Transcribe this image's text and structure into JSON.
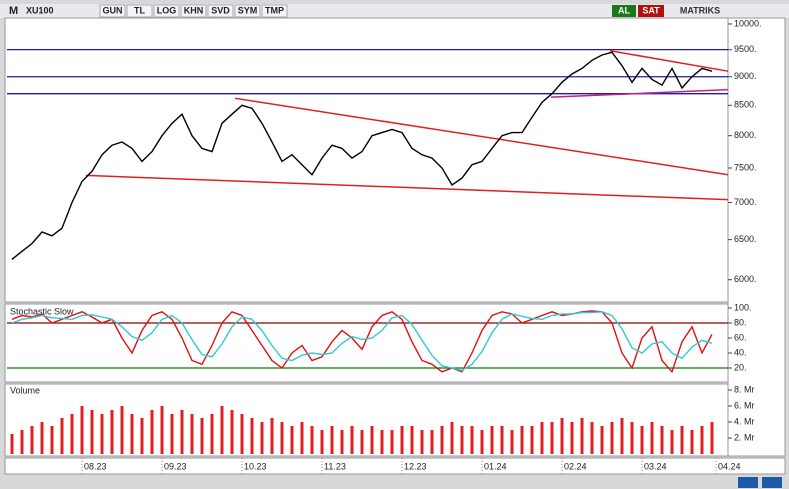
{
  "ui": {
    "menu": "M",
    "toolbar": [
      "GUN",
      "TL",
      "LOG",
      "KHN",
      "SVD",
      "SYM",
      "TMP"
    ],
    "buy": "AL",
    "sell": "SAT",
    "brand": "MATRIKS"
  },
  "chart_data": [
    {
      "type": "line",
      "title": "XU100",
      "log_scale": true,
      "xlim": [
        -0.5,
        71.6
      ],
      "ylim": [
        5750,
        10100
      ],
      "yticks": [
        {
          "value": 6000,
          "label": "6000."
        },
        {
          "value": 6500,
          "label": "6500."
        },
        {
          "value": 7000,
          "label": "7000."
        },
        {
          "value": 7500,
          "label": "7500."
        },
        {
          "value": 8000,
          "label": "8000."
        },
        {
          "value": 8500,
          "label": "8500."
        },
        {
          "value": 9000,
          "label": "9000."
        },
        {
          "value": 9500,
          "label": "9500."
        },
        {
          "value": 10000,
          "label": "10000."
        }
      ],
      "series": [
        {
          "color": "#000000",
          "values": [
            6250,
            6350,
            6450,
            6600,
            6550,
            6650,
            7000,
            7300,
            7450,
            7700,
            7850,
            7900,
            7800,
            7600,
            7750,
            8000,
            8200,
            8350,
            8000,
            7800,
            7750,
            8200,
            8350,
            8500,
            8450,
            8200,
            7900,
            7600,
            7700,
            7550,
            7400,
            7650,
            7850,
            7800,
            7650,
            7750,
            8000,
            8050,
            8100,
            8050,
            7800,
            7700,
            7650,
            7500,
            7250,
            7350,
            7550,
            7600,
            7800,
            8000,
            8050,
            8050,
            8300,
            8550,
            8700,
            8900,
            9050,
            9150,
            9300,
            9400,
            9450,
            9200,
            8900,
            9150,
            8950,
            8850,
            9150,
            8800,
            9000,
            9150,
            9100
          ]
        }
      ],
      "hlines": [
        {
          "value": 9500,
          "color": "#1c1ca8"
        },
        {
          "value": 9000,
          "color": "#1c1ca8"
        },
        {
          "value": 8700,
          "color": "#1c1ca8"
        }
      ],
      "trendlines": [
        {
          "x": [
            7.4,
            71.6
          ],
          "y": [
            7390,
            7040
          ],
          "color": "#e02020"
        },
        {
          "x": [
            22.3,
            71.6
          ],
          "y": [
            8620,
            7400
          ],
          "color": "#e02020"
        },
        {
          "x": [
            59.8,
            71.6
          ],
          "y": [
            9480,
            9100
          ],
          "color": "#e02020"
        },
        {
          "x": [
            53.9,
            71.6
          ],
          "y": [
            8640,
            8770
          ],
          "color": "#c0208a"
        }
      ]
    },
    {
      "type": "line",
      "title": "Stochastic Slow",
      "xlim": [
        -0.5,
        71.6
      ],
      "ylim": [
        0,
        100
      ],
      "yticks": [
        {
          "value": 20,
          "label": "20."
        },
        {
          "value": 40,
          "label": "40."
        },
        {
          "value": 60,
          "label": "60."
        },
        {
          "value": 80,
          "label": "80."
        },
        {
          "value": 100,
          "label": "100."
        }
      ],
      "series": [
        {
          "color": "#e01010",
          "values": [
            85,
            90,
            88,
            92,
            80,
            85,
            90,
            95,
            88,
            80,
            85,
            60,
            40,
            70,
            90,
            95,
            85,
            60,
            30,
            25,
            50,
            80,
            95,
            90,
            70,
            50,
            30,
            20,
            40,
            50,
            30,
            35,
            55,
            70,
            60,
            45,
            75,
            90,
            95,
            85,
            55,
            30,
            25,
            15,
            20,
            15,
            40,
            70,
            90,
            95,
            92,
            80,
            85,
            90,
            95,
            90,
            92,
            95,
            96,
            95,
            80,
            40,
            20,
            60,
            75,
            30,
            15,
            55,
            75,
            40,
            65
          ]
        },
        {
          "color": "#30c8d8",
          "values": [
            80,
            85,
            87,
            90,
            87,
            86,
            85,
            90,
            91,
            88,
            85,
            75,
            62,
            57,
            67,
            85,
            90,
            80,
            58,
            38,
            35,
            52,
            75,
            88,
            85,
            70,
            50,
            33,
            30,
            37,
            40,
            38,
            40,
            53,
            62,
            58,
            60,
            70,
            87,
            90,
            78,
            57,
            37,
            23,
            20,
            17,
            25,
            42,
            67,
            85,
            92,
            89,
            86,
            85,
            90,
            92,
            92,
            94,
            94,
            95,
            90,
            72,
            47,
            40,
            52,
            55,
            40,
            33,
            48,
            57,
            53
          ]
        }
      ],
      "hlines": [
        {
          "value": 80,
          "color": "#8b0000"
        },
        {
          "value": 20,
          "color": "#008000"
        }
      ]
    },
    {
      "type": "bar",
      "title": "Volume",
      "color": "#e02020",
      "xlim": [
        -0.5,
        71.6
      ],
      "ylim": [
        0,
        8.5
      ],
      "yticks": [
        {
          "value": 2,
          "label": "2. Mr"
        },
        {
          "value": 4,
          "label": "4. Mr"
        },
        {
          "value": 6,
          "label": "6. Mr"
        },
        {
          "value": 8,
          "label": "8. Mr"
        }
      ],
      "xticks": [
        {
          "value": 7,
          "label": "08.23"
        },
        {
          "value": 15,
          "label": "09.23"
        },
        {
          "value": 23,
          "label": "10.23"
        },
        {
          "value": 31,
          "label": "11.23"
        },
        {
          "value": 39,
          "label": "12.23"
        },
        {
          "value": 47,
          "label": "01.24"
        },
        {
          "value": 55,
          "label": "02.24"
        },
        {
          "value": 63,
          "label": "03.24"
        },
        {
          "value": 70.4,
          "label": "04.24"
        }
      ],
      "values": [
        2.5,
        3,
        3.5,
        4,
        3.5,
        4.5,
        5,
        6,
        5.5,
        5,
        5.5,
        6,
        5,
        4.5,
        5.5,
        6,
        5,
        5.5,
        5,
        4.5,
        5,
        6,
        5.5,
        5,
        4.5,
        4,
        4.5,
        4,
        3.5,
        4,
        3.5,
        3,
        3.5,
        3,
        3.5,
        3,
        3.5,
        3,
        3,
        3.5,
        3.5,
        3,
        3,
        3.5,
        4,
        3.5,
        3.5,
        3,
        3.5,
        3.5,
        3,
        3.5,
        3.5,
        4,
        4,
        4.5,
        4,
        4.5,
        4,
        3.5,
        4,
        4.5,
        4,
        3.5,
        4,
        3.5,
        3,
        3.5,
        3,
        3.5,
        4
      ]
    }
  ]
}
